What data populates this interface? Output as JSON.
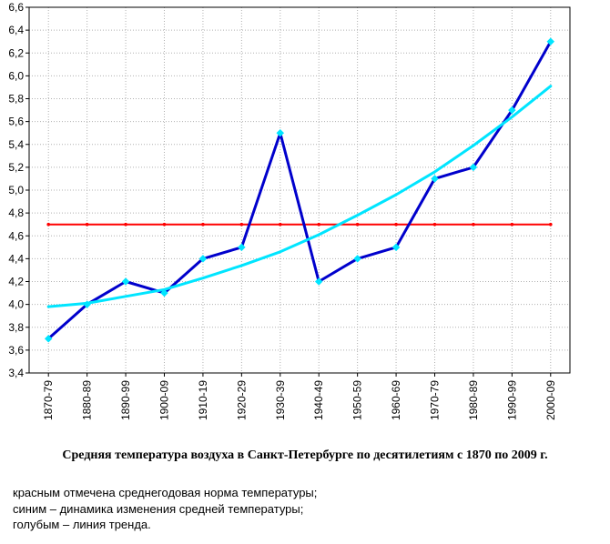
{
  "chart_data": {
    "type": "line",
    "categories": [
      "1870-79",
      "1880-89",
      "1890-99",
      "1900-09",
      "1910-19",
      "1920-29",
      "1930-39",
      "1940-49",
      "1950-59",
      "1960-69",
      "1970-79",
      "1980-89",
      "1990-99",
      "2000-09"
    ],
    "series": [
      {
        "color": "#ff0000",
        "values": [
          4.7,
          4.7,
          4.7,
          4.7,
          4.7,
          4.7,
          4.7,
          4.7,
          4.7,
          4.7,
          4.7,
          4.7,
          4.7,
          4.7
        ]
      },
      {
        "color": "#0000cc",
        "marker_color": "#00e5ff",
        "values": [
          3.7,
          4.0,
          4.2,
          4.1,
          4.4,
          4.5,
          5.5,
          4.2,
          4.4,
          4.5,
          5.1,
          5.2,
          5.7,
          6.3
        ]
      },
      {
        "color": "#00e5ff",
        "values": [
          3.98,
          4.01,
          4.07,
          4.13,
          4.23,
          4.34,
          4.46,
          4.61,
          4.78,
          4.96,
          5.16,
          5.39,
          5.64,
          5.91
        ]
      }
    ],
    "yticks": [
      "3,4",
      "3,6",
      "3,8",
      "4,0",
      "4,2",
      "4,4",
      "4,6",
      "4,8",
      "5,0",
      "5,2",
      "5,4",
      "5,6",
      "5,8",
      "6,0",
      "6,2",
      "6,4",
      "6,6"
    ],
    "ylim": [
      3.4,
      6.6
    ],
    "grid": true,
    "title": "Средняя температура воздуха в Санкт-Петербурге по десятилетиям с 1870 по 2009 г.",
    "notes": [
      "красным отмечена среднегодовая норма температуры;",
      "синим – динамика изменения средней температуры;",
      "голубым – линия тренда."
    ]
  }
}
